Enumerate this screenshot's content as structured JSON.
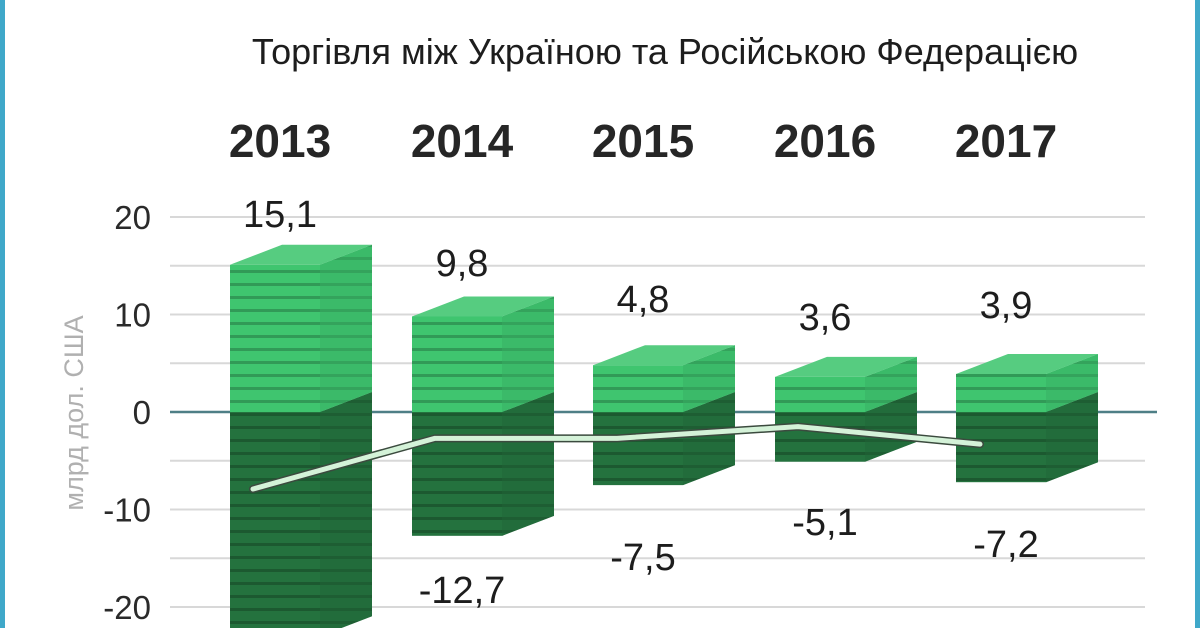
{
  "chart_data": {
    "type": "bar",
    "title": "Торгівля між Україною та Російською Федерацією",
    "ylabel": "млрд дол. США",
    "categories": [
      "2013",
      "2014",
      "2015",
      "2016",
      "2017"
    ],
    "series": [
      {
        "values": [
          15.1,
          9.8,
          4.8,
          3.6,
          3.9
        ],
        "color": "#3fc56f"
      },
      {
        "values": [
          -23.0,
          -12.7,
          -7.5,
          -5.1,
          -7.2
        ],
        "color": "#24723e"
      }
    ],
    "line": {
      "values": [
        -7.9,
        -2.7,
        -2.7,
        -1.5,
        -3.3
      ],
      "color": "#d4f2d8"
    },
    "value_labels": {
      "top": [
        "15,1",
        "9,8",
        "4,8",
        "3,6",
        "3,9"
      ],
      "bottom": [
        "",
        "-12,7",
        "-7,5",
        "-5,1",
        "-7,2"
      ]
    },
    "yticks": [
      20,
      10,
      0,
      -10,
      -20
    ],
    "ytick_labels": [
      "20",
      "10",
      "0",
      "-10",
      "-20"
    ],
    "ylim": [
      -22,
      22
    ],
    "grid": true,
    "colors": {
      "frame": "#3fa8c9",
      "grid": "#d8d8d8",
      "zero_line": "#4e7f86"
    }
  }
}
